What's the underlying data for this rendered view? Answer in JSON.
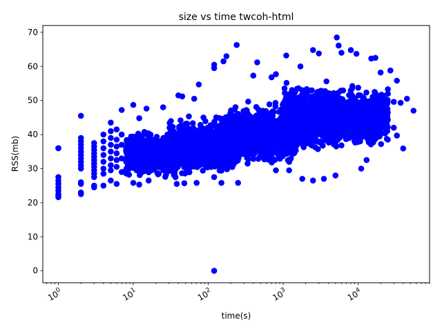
{
  "chart_data": {
    "type": "scatter",
    "title": "size vs time twcoh-html",
    "xlabel": "time(s)",
    "ylabel": "RSS(mb)",
    "xscale": "log",
    "xlim": [
      0.62,
      90000
    ],
    "ylim": [
      -3.5,
      72
    ],
    "grid": false,
    "legend": "none",
    "marker_color": "#0000ff",
    "x_ticks": [
      {
        "value": 1,
        "label": "10",
        "exp": "0"
      },
      {
        "value": 10,
        "label": "10",
        "exp": "1"
      },
      {
        "value": 100,
        "label": "10",
        "exp": "2"
      },
      {
        "value": 1000,
        "label": "10",
        "exp": "3"
      },
      {
        "value": 10000,
        "label": "10",
        "exp": "4"
      }
    ],
    "y_ticks": [
      {
        "value": 0,
        "label": "0"
      },
      {
        "value": 10,
        "label": "10"
      },
      {
        "value": 20,
        "label": "20"
      },
      {
        "value": 30,
        "label": "30"
      },
      {
        "value": 40,
        "label": "40"
      },
      {
        "value": 50,
        "label": "50"
      },
      {
        "value": 60,
        "label": "60"
      },
      {
        "value": 70,
        "label": "70"
      }
    ],
    "points": [
      [
        1,
        36
      ],
      [
        1,
        27.5
      ],
      [
        1,
        26.5
      ],
      [
        1,
        25.5
      ],
      [
        1,
        24.5
      ],
      [
        1,
        23.5
      ],
      [
        1,
        22.5
      ],
      [
        1,
        22
      ],
      [
        1,
        21.6
      ],
      [
        2,
        45.5
      ],
      [
        2,
        39
      ],
      [
        2,
        38
      ],
      [
        2,
        37
      ],
      [
        2,
        36
      ],
      [
        2,
        35
      ],
      [
        2,
        34
      ],
      [
        2,
        33
      ],
      [
        2,
        32
      ],
      [
        2,
        31
      ],
      [
        2,
        30
      ],
      [
        2,
        26
      ],
      [
        2,
        25.5
      ],
      [
        2,
        23
      ],
      [
        2,
        22.5
      ],
      [
        3,
        37.5
      ],
      [
        3,
        36.5
      ],
      [
        3,
        35.5
      ],
      [
        3,
        34.5
      ],
      [
        3,
        33.5
      ],
      [
        3,
        32.5
      ],
      [
        3,
        31.5
      ],
      [
        3,
        30.5
      ],
      [
        3,
        29.5
      ],
      [
        3,
        28.5
      ],
      [
        3,
        27.5
      ],
      [
        3,
        25
      ],
      [
        3,
        24.5
      ],
      [
        4,
        40
      ],
      [
        4,
        38
      ],
      [
        4,
        36
      ],
      [
        4,
        34
      ],
      [
        4,
        32
      ],
      [
        4,
        30
      ],
      [
        4,
        28.5
      ],
      [
        4,
        25
      ],
      [
        5,
        43.5
      ],
      [
        5,
        41
      ],
      [
        5,
        39
      ],
      [
        5,
        37
      ],
      [
        5,
        35
      ],
      [
        5,
        33
      ],
      [
        5,
        31
      ],
      [
        5,
        29.5
      ],
      [
        5,
        26.5
      ],
      [
        6,
        41.5
      ],
      [
        6,
        38.5
      ],
      [
        6,
        36.5
      ],
      [
        6,
        34.5
      ],
      [
        6,
        32.5
      ],
      [
        6,
        30.5
      ],
      [
        6,
        25.5
      ],
      [
        7,
        47.2
      ],
      [
        7,
        40
      ],
      [
        7,
        37
      ],
      [
        7,
        33
      ],
      [
        7,
        29
      ],
      [
        10,
        48.7
      ],
      [
        12,
        44.8
      ],
      [
        15,
        47.6
      ],
      [
        10,
        25.8
      ],
      [
        12,
        25.3
      ],
      [
        16,
        26.5
      ],
      [
        25,
        48
      ],
      [
        40,
        51.5
      ],
      [
        45,
        51.2
      ],
      [
        65,
        50.5
      ],
      [
        75,
        54.7
      ],
      [
        38,
        25.5
      ],
      [
        48,
        25.7
      ],
      [
        70,
        25.8
      ],
      [
        120,
        0
      ],
      [
        120,
        59.5
      ],
      [
        120,
        60.5
      ],
      [
        160,
        61.5
      ],
      [
        175,
        63
      ],
      [
        240,
        66.3
      ],
      [
        400,
        57.3
      ],
      [
        450,
        61.2
      ],
      [
        700,
        56.8
      ],
      [
        800,
        57.7
      ],
      [
        1100,
        63.2
      ],
      [
        1700,
        60
      ],
      [
        2500,
        64.8
      ],
      [
        3000,
        63.8
      ],
      [
        5200,
        68.5
      ],
      [
        5500,
        66.1
      ],
      [
        6000,
        64
      ],
      [
        8000,
        64.8
      ],
      [
        9500,
        63.7
      ],
      [
        15000,
        62.3
      ],
      [
        17000,
        62.5
      ],
      [
        20000,
        58.2
      ],
      [
        25000,
        53.3
      ],
      [
        27000,
        58.8
      ],
      [
        30000,
        49.6
      ],
      [
        33000,
        55.8
      ],
      [
        37000,
        49.3
      ],
      [
        40000,
        35.9
      ],
      [
        45000,
        50.5
      ],
      [
        55000,
        47
      ],
      [
        30000,
        42
      ],
      [
        33000,
        39.7
      ],
      [
        25000,
        38.5
      ],
      [
        5000,
        28
      ],
      [
        3500,
        27
      ],
      [
        2500,
        26.5
      ],
      [
        1800,
        27
      ],
      [
        1200,
        29.5
      ],
      [
        800,
        29.5
      ],
      [
        250,
        25.8
      ],
      [
        150,
        25.8
      ],
      [
        120,
        27.5
      ],
      [
        11000,
        30
      ],
      [
        13000,
        32.5
      ],
      [
        1,
        36.0
      ]
    ],
    "clusters": [
      {
        "x_min": 8,
        "x_max": 40,
        "y_center": 34,
        "y_spread": 5.5,
        "count": 650
      },
      {
        "x_min": 30,
        "x_max": 250,
        "y_center": 36.5,
        "y_spread": 6.5,
        "count": 1000
      },
      {
        "x_min": 150,
        "x_max": 1500,
        "y_center": 40,
        "y_spread": 7,
        "count": 1100
      },
      {
        "x_min": 1000,
        "x_max": 6000,
        "y_center": 45,
        "y_spread": 7.5,
        "count": 1300
      },
      {
        "x_min": 4000,
        "x_max": 25000,
        "y_center": 45,
        "y_spread": 7,
        "count": 900
      }
    ]
  }
}
